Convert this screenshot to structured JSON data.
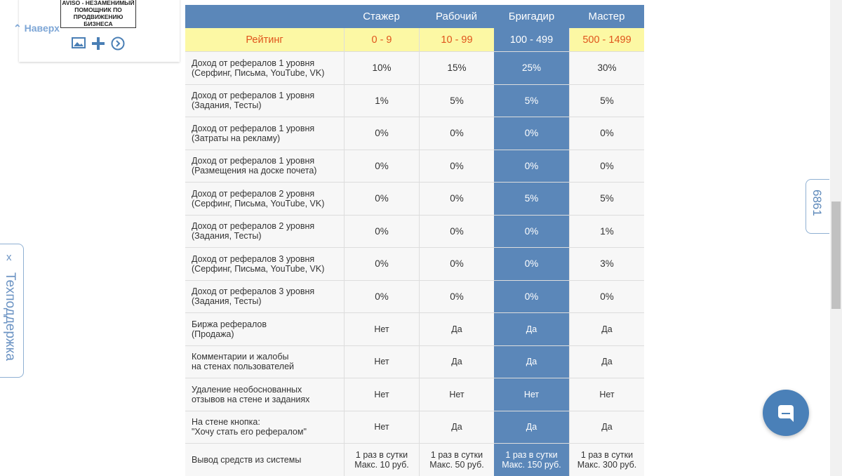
{
  "widget": {
    "logo_lines": [
      "AVISO - НЕЗАМЕНИМЫЙ",
      "ПОМОЩНИК ПО",
      "ПРОДВИЖЕНИЮ",
      "БИЗНЕСА"
    ],
    "back_link": "Наверх"
  },
  "support_tab": {
    "close": "x",
    "label": "Техподдержка"
  },
  "counter_tab": "6861",
  "table": {
    "columns": [
      "Стажер",
      "Рабочий",
      "Бригадир",
      "Мастер"
    ],
    "rating": {
      "label": "Рейтинг",
      "values": [
        "0 - 9",
        "10 - 99",
        "100 - 499",
        "500 - 1499"
      ]
    },
    "rows": [
      {
        "label": [
          "Доход от рефералов 1 уровня",
          "(Серфинг, Письма, YouTube, VK)"
        ],
        "cells": [
          "10%",
          "15%",
          "25%",
          "30%"
        ]
      },
      {
        "label": [
          "Доход от рефералов 1 уровня",
          "(Задания, Тесты)"
        ],
        "cells": [
          "1%",
          "5%",
          "5%",
          "5%"
        ]
      },
      {
        "label": [
          "Доход от рефералов 1 уровня",
          "(Затраты на рекламу)"
        ],
        "cells": [
          "0%",
          "0%",
          "0%",
          "0%"
        ]
      },
      {
        "label": [
          "Доход от рефералов 1 уровня",
          "(Размещения на доске почета)"
        ],
        "cells": [
          "0%",
          "0%",
          "0%",
          "0%"
        ]
      },
      {
        "label": [
          "Доход от рефералов 2 уровня",
          "(Серфинг, Письма, YouTube, VK)"
        ],
        "cells": [
          "0%",
          "0%",
          "5%",
          "5%"
        ]
      },
      {
        "label": [
          "Доход от рефералов 2 уровня",
          "(Задания, Тесты)"
        ],
        "cells": [
          "0%",
          "0%",
          "0%",
          "1%"
        ]
      },
      {
        "label": [
          "Доход от рефералов 3 уровня",
          "(Серфинг, Письма, YouTube, VK)"
        ],
        "cells": [
          "0%",
          "0%",
          "0%",
          "3%"
        ]
      },
      {
        "label": [
          "Доход от рефералов 3 уровня",
          "(Задания, Тесты)"
        ],
        "cells": [
          "0%",
          "0%",
          "0%",
          "0%"
        ]
      },
      {
        "label": [
          "Биржа рефералов",
          "(Продажа)"
        ],
        "cells": [
          "Нет",
          "Да",
          "Да",
          "Да"
        ]
      },
      {
        "label": [
          "Комментарии и жалобы",
          "на стенах пользователей"
        ],
        "cells": [
          "Нет",
          "Да",
          "Да",
          "Да"
        ]
      },
      {
        "label": [
          "Удаление необоснованных",
          "отзывов на стене и заданиях"
        ],
        "cells": [
          "Нет",
          "Нет",
          "Нет",
          "Нет"
        ]
      },
      {
        "label": [
          "На стене кнопка:",
          "\"Хочу стать его рефералом\""
        ],
        "cells": [
          "Нет",
          "Да",
          "Да",
          "Да"
        ]
      },
      {
        "label": [
          "Вывод средств из системы"
        ],
        "cells": [
          [
            "1 раз в сутки",
            "Макс. 10 руб."
          ],
          [
            "1 раз в сутки",
            "Макс. 50 руб."
          ],
          [
            "1 раз в сутки",
            "Макс. 150 руб."
          ],
          [
            "1 раз в сутки",
            "Макс. 300 руб."
          ]
        ]
      }
    ]
  }
}
